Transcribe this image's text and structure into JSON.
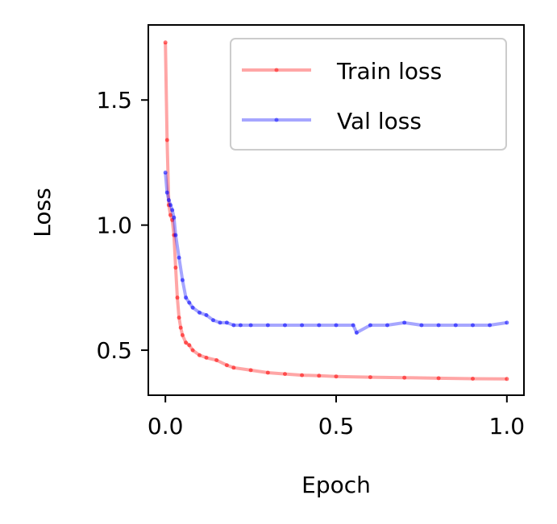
{
  "chart_data": {
    "type": "line",
    "title": "",
    "xlabel": "Epoch",
    "ylabel": "Loss",
    "xlim": [
      -0.05,
      1.05
    ],
    "ylim": [
      0.32,
      1.8
    ],
    "xticks": [
      0.0,
      0.5,
      1.0
    ],
    "xtick_labels": [
      "0.0",
      "0.5",
      "1.0"
    ],
    "yticks": [
      0.5,
      1.0,
      1.5
    ],
    "ytick_labels": [
      "0.5",
      "1.0",
      "1.5"
    ],
    "grid": false,
    "legend_position": "top-right",
    "series": [
      {
        "name": "Train loss",
        "color": "#ff0000",
        "x": [
          0.0,
          0.005,
          0.01,
          0.015,
          0.02,
          0.025,
          0.03,
          0.035,
          0.04,
          0.045,
          0.05,
          0.06,
          0.07,
          0.08,
          0.1,
          0.12,
          0.15,
          0.18,
          0.2,
          0.25,
          0.3,
          0.35,
          0.4,
          0.45,
          0.5,
          0.6,
          0.7,
          0.8,
          0.9,
          1.0
        ],
        "y": [
          1.73,
          1.34,
          1.08,
          1.04,
          1.02,
          0.96,
          0.83,
          0.71,
          0.63,
          0.59,
          0.56,
          0.53,
          0.52,
          0.5,
          0.48,
          0.47,
          0.46,
          0.44,
          0.43,
          0.42,
          0.41,
          0.405,
          0.4,
          0.398,
          0.395,
          0.392,
          0.39,
          0.388,
          0.386,
          0.385
        ]
      },
      {
        "name": "Val loss",
        "color": "#0000ff",
        "x": [
          0.0,
          0.005,
          0.01,
          0.015,
          0.02,
          0.025,
          0.03,
          0.04,
          0.05,
          0.06,
          0.07,
          0.08,
          0.1,
          0.12,
          0.14,
          0.16,
          0.18,
          0.2,
          0.22,
          0.25,
          0.3,
          0.35,
          0.4,
          0.45,
          0.5,
          0.55,
          0.56,
          0.6,
          0.65,
          0.7,
          0.75,
          0.8,
          0.85,
          0.9,
          0.95,
          1.0
        ],
        "y": [
          1.21,
          1.13,
          1.1,
          1.08,
          1.06,
          1.03,
          0.96,
          0.87,
          0.78,
          0.71,
          0.69,
          0.67,
          0.65,
          0.64,
          0.62,
          0.61,
          0.61,
          0.6,
          0.6,
          0.6,
          0.6,
          0.6,
          0.6,
          0.6,
          0.6,
          0.6,
          0.57,
          0.6,
          0.6,
          0.61,
          0.6,
          0.6,
          0.6,
          0.6,
          0.6,
          0.61
        ]
      }
    ]
  }
}
